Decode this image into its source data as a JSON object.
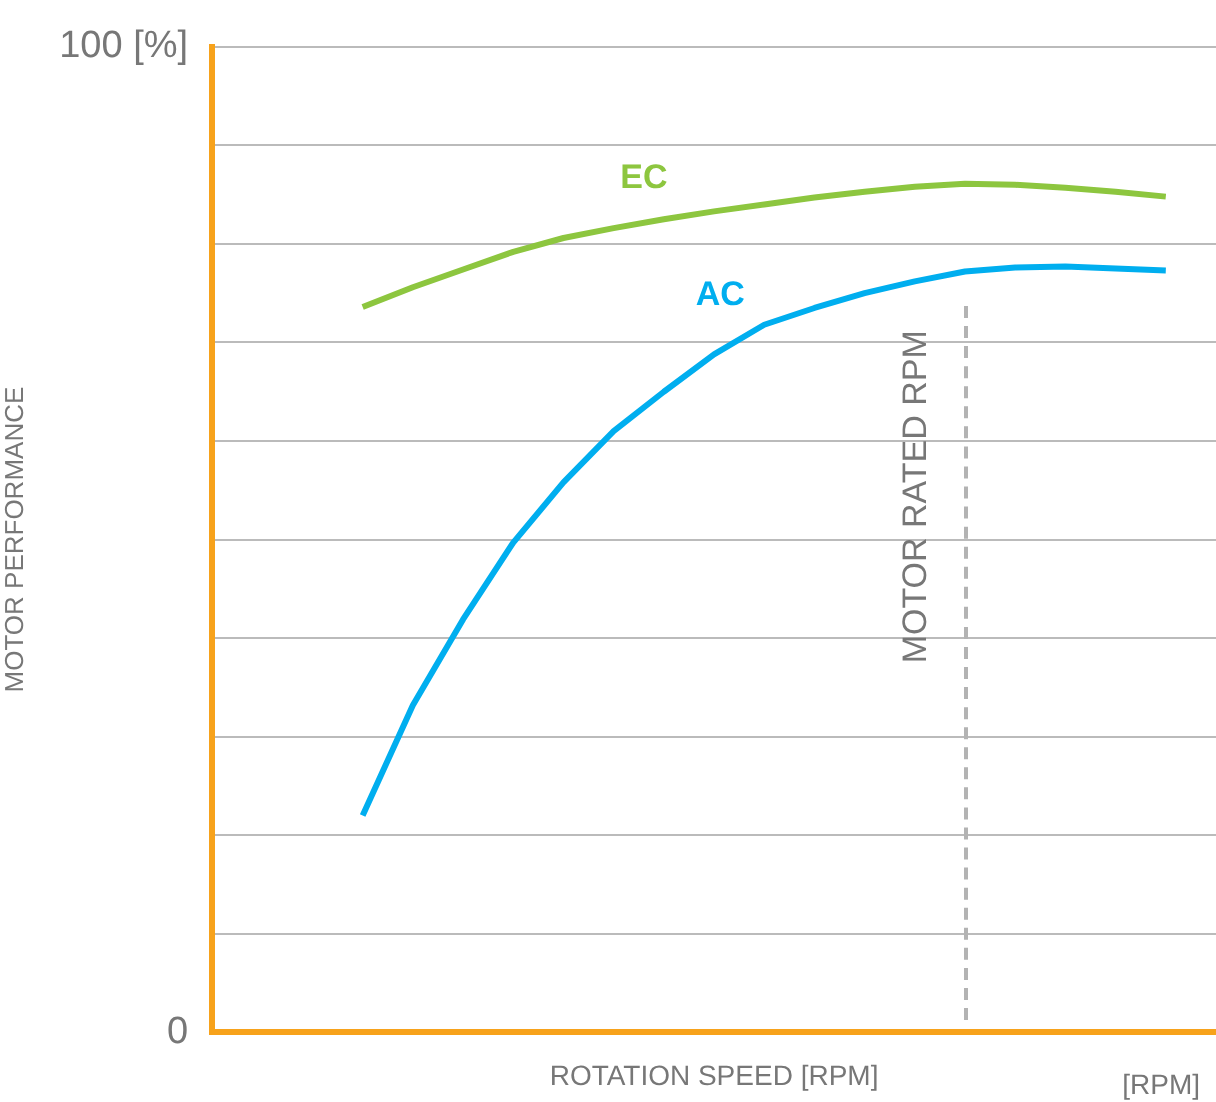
{
  "chart_data": {
    "type": "line",
    "xlabel": "ROTATION SPEED [RPM]",
    "ylabel": "MOTOR PERFORMANCE",
    "annotations": [
      "MOTOR RATED RPM",
      "[RPM]"
    ],
    "categories": [
      null,
      null,
      null,
      null,
      null,
      null,
      null,
      null,
      null,
      null,
      null,
      null,
      null,
      null,
      null,
      null,
      null,
      null,
      null,
      null,
      null
    ],
    "ylim": [
      0,
      100
    ],
    "yticks": [
      0,
      {
        "value": 10,
        "label": null
      },
      {
        "value": 20,
        "label": null
      },
      {
        "value": 30,
        "label": null
      },
      {
        "value": 40,
        "label": null
      },
      {
        "value": 50,
        "label": null
      },
      {
        "value": 60,
        "label": null
      },
      {
        "value": 70,
        "label": null
      },
      {
        "value": 80,
        "label": null
      },
      {
        "value": 90,
        "label": null
      },
      {
        "value": 100,
        "label": "100 [%]"
      }
    ],
    "tick_labels": "y",
    "grid": "y",
    "legend": false,
    "marker": "none",
    "line_style": "solid",
    "series": [
      {
        "name": "EC",
        "color": "#8dc63f",
        "values": [
          null,
          null,
          null,
          73.6,
          75.6,
          77.4,
          79.2,
          80.6,
          81.6,
          82.5,
          83.3,
          84.0,
          84.7,
          85.3,
          85.8,
          86.1,
          86.0,
          85.7,
          85.3,
          84.8,
          null
        ]
      },
      {
        "name": "AC",
        "color": "#00aeef",
        "values": [
          null,
          null,
          null,
          22.0,
          33.2,
          41.9,
          49.7,
          55.8,
          61.0,
          65.0,
          68.8,
          71.8,
          73.5,
          75.0,
          76.2,
          77.2,
          77.6,
          77.7,
          77.5,
          77.3,
          null
        ]
      }
    ]
  }
}
